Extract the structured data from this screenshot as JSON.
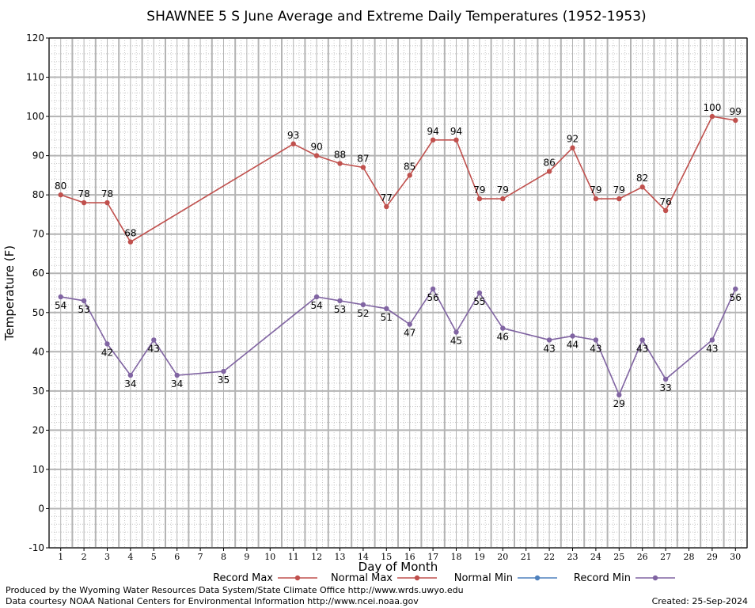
{
  "chart_data": {
    "type": "line",
    "title": "SHAWNEE 5 S June Average and Extreme Daily Temperatures (1952-1953)",
    "xlabel": "Day of Month",
    "ylabel": "Temperature (F)",
    "xlim": [
      0.5,
      30.5
    ],
    "ylim": [
      -10,
      120
    ],
    "yticks": [
      -10,
      0,
      10,
      20,
      30,
      40,
      50,
      60,
      70,
      80,
      90,
      100,
      110,
      120
    ],
    "xticks": [
      1,
      2,
      3,
      4,
      5,
      6,
      7,
      8,
      9,
      10,
      11,
      12,
      13,
      14,
      15,
      16,
      17,
      18,
      19,
      20,
      21,
      22,
      23,
      24,
      25,
      26,
      27,
      28,
      29,
      30
    ],
    "grid": true,
    "legend_position": "bottom",
    "series": [
      {
        "name": "Record Max",
        "color": "#c0504d",
        "marker": "circle",
        "points": [
          [
            1,
            80
          ],
          [
            2,
            78
          ],
          [
            3,
            78
          ],
          [
            4,
            68
          ],
          [
            11,
            93
          ],
          [
            12,
            90
          ],
          [
            13,
            88
          ],
          [
            14,
            87
          ],
          [
            15,
            77
          ],
          [
            16,
            85
          ],
          [
            17,
            94
          ],
          [
            18,
            94
          ],
          [
            19,
            79
          ],
          [
            20,
            79
          ],
          [
            22,
            86
          ],
          [
            23,
            92
          ],
          [
            24,
            79
          ],
          [
            25,
            79
          ],
          [
            26,
            82
          ],
          [
            27,
            76
          ],
          [
            29,
            100
          ],
          [
            30,
            99
          ]
        ]
      },
      {
        "name": "Normal Max",
        "color": "#c0504d",
        "marker": "circle",
        "points": []
      },
      {
        "name": "Normal Min",
        "color": "#4f81bd",
        "marker": "circle",
        "points": []
      },
      {
        "name": "Record Min",
        "color": "#8064a2",
        "marker": "circle",
        "points": [
          [
            1,
            54
          ],
          [
            2,
            53
          ],
          [
            3,
            42
          ],
          [
            4,
            34
          ],
          [
            5,
            43
          ],
          [
            6,
            34
          ],
          [
            8,
            35
          ],
          [
            12,
            54
          ],
          [
            13,
            53
          ],
          [
            14,
            52
          ],
          [
            15,
            51
          ],
          [
            16,
            47
          ],
          [
            17,
            56
          ],
          [
            18,
            45
          ],
          [
            19,
            55
          ],
          [
            20,
            46
          ],
          [
            22,
            43
          ],
          [
            23,
            44
          ],
          [
            24,
            43
          ],
          [
            25,
            29
          ],
          [
            26,
            43
          ],
          [
            27,
            33
          ],
          [
            29,
            43
          ],
          [
            30,
            56
          ]
        ]
      }
    ]
  },
  "footer": {
    "line1": "Produced by the Wyoming Water Resources Data System/State Climate Office http://www.wrds.uwyo.edu",
    "line2": "Data courtesy NOAA National Centers for Environmental Information http://www.ncei.noaa.gov",
    "created": "Created:  25-Sep-2024"
  }
}
